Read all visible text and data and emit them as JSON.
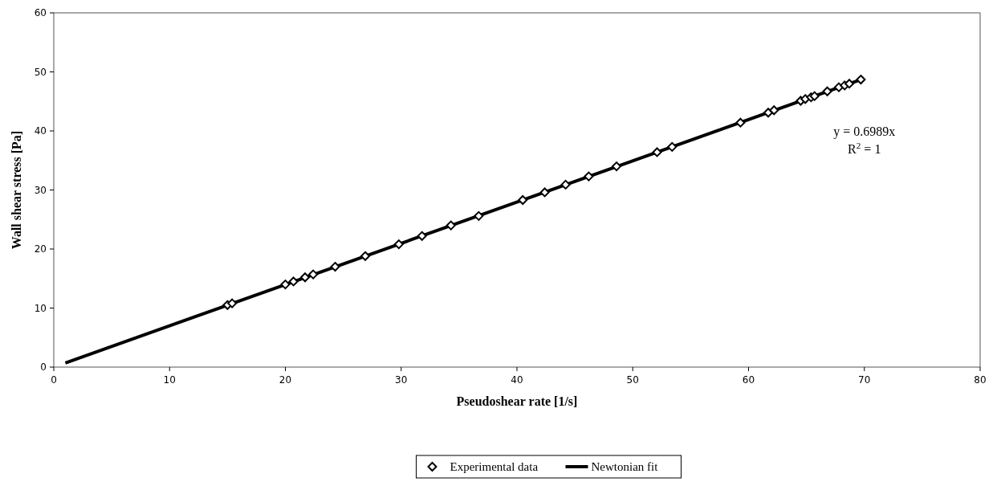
{
  "chart_data": {
    "type": "scatter",
    "xlabel": "Pseudoshear rate [1/s]",
    "ylabel": "Wall shear stress [Pa]",
    "annotations": [
      "y = 0.6989x",
      "R$^{2}$ = 1"
    ],
    "xlim": [
      0,
      80
    ],
    "xticks": [
      0,
      10,
      20,
      30,
      40,
      50,
      60,
      70,
      80
    ],
    "ylim": [
      0,
      60
    ],
    "yticks": [
      0,
      10,
      20,
      30,
      40,
      50,
      60
    ],
    "grid": false,
    "legend": "bottom",
    "series": [
      {
        "name": "Experimental data",
        "marker": "diamond",
        "color": "#000000",
        "x": [
          15,
          15.4,
          20.0,
          20.7,
          21.7,
          22.4,
          24.3,
          26.9,
          29.8,
          31.8,
          34.3,
          36.7,
          40.5,
          42.4,
          44.2,
          46.2,
          48.6,
          52.1,
          53.4,
          59.3,
          61.7,
          62.2,
          64.5,
          64.9,
          65.4,
          65.7,
          66.8,
          67.8,
          68.3,
          68.7,
          69.7
        ],
        "values": [
          10.5,
          10.8,
          14.0,
          14.5,
          15.2,
          15.7,
          17.0,
          18.8,
          20.8,
          22.2,
          24.0,
          25.6,
          28.3,
          29.6,
          30.9,
          32.3,
          34.0,
          36.4,
          37.3,
          41.4,
          43.1,
          43.5,
          45.1,
          45.4,
          45.7,
          45.9,
          46.7,
          47.4,
          47.7,
          48.0,
          48.7
        ]
      },
      {
        "name": "Newtonian fit",
        "type": "line",
        "line_style": "solid",
        "color": "#000000",
        "x": [
          1,
          69.7
        ],
        "values": [
          0.7,
          48.7
        ]
      }
    ]
  }
}
